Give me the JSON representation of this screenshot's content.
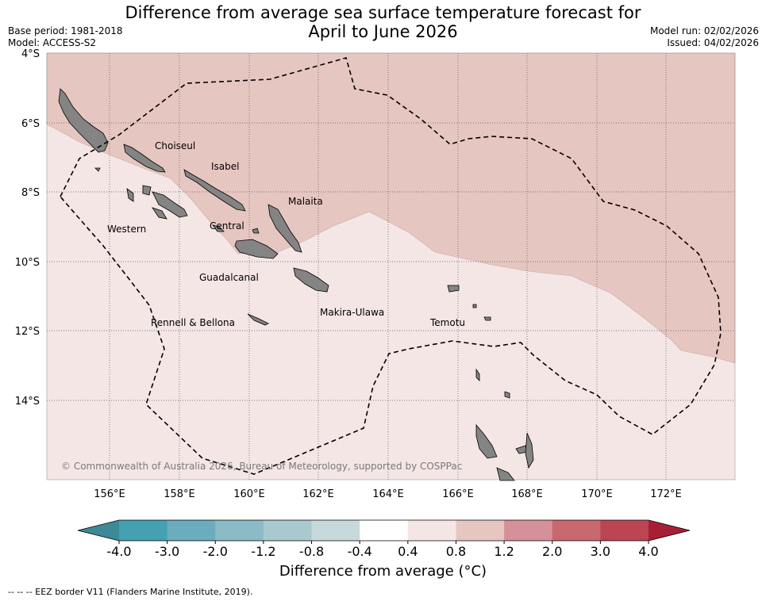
{
  "title": {
    "line1": "Difference from average sea surface temperature forecast for",
    "line2": "April to June 2026"
  },
  "meta": {
    "base_period": "Base period: 1981-2018",
    "model": "Model: ACCESS-S2",
    "model_run": "Model run: 02/02/2026",
    "issued": "Issued: 04/02/2026"
  },
  "map": {
    "lat_labels": [
      "4°S",
      "6°S",
      "8°S",
      "10°S",
      "12°S",
      "14°S"
    ],
    "lon_labels": [
      "156°E",
      "158°E",
      "160°E",
      "162°E",
      "164°E",
      "166°E",
      "168°E",
      "170°E",
      "172°E"
    ],
    "places": {
      "choiseul": "Choiseul",
      "isabel": "Isabel",
      "malaita": "Malaita",
      "western": "Western",
      "central": "Central",
      "guadalcanal": "Guadalcanal",
      "rennell": "Rennell & Bellona",
      "makira": "Makira-Ulawa",
      "temotu": "Temotu"
    },
    "copyright": "© Commonwealth of Australia 2026, Bureau of Meteorology, supported by COSPPac"
  },
  "colorbar": {
    "ticks": [
      "-4.0",
      "-3.0",
      "-2.0",
      "-1.2",
      "-0.8",
      "-0.4",
      "0.4",
      "0.8",
      "1.2",
      "2.0",
      "3.0",
      "4.0"
    ],
    "colors": {
      "below": "#3d8996",
      "bins": [
        "#45a0b2",
        "#6badbd",
        "#8bbbc5",
        "#a8cacf",
        "#c8d9dc",
        "#ffffff",
        "#f4e6e5",
        "#e6c6c1",
        "#d5919a",
        "#c8686f",
        "#bb4552"
      ],
      "above": "#a61f37"
    },
    "label": "Difference from average (°C)"
  },
  "eez_note": "--  --  -- EEZ border V11 (Flanders Marine Institute, 2019)."
}
